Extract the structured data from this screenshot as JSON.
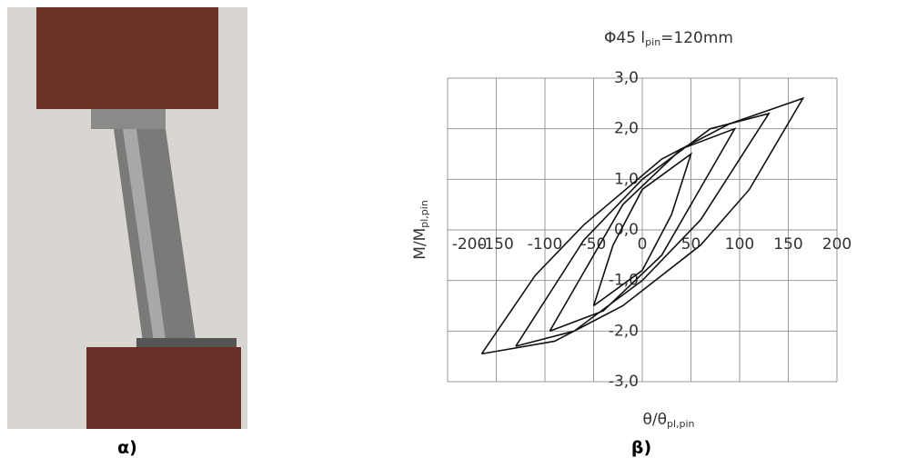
{
  "labels": [
    "α)",
    "β)"
  ],
  "chart_data": {
    "type": "line",
    "title_parts": [
      "Φ45 l",
      "pin",
      "=120mm"
    ],
    "x_label_parts": [
      "θ/θ",
      "pl,pin"
    ],
    "y_label_parts": [
      "M/M",
      "pl,pin"
    ],
    "xlim": [
      -200,
      200
    ],
    "ylim": [
      -3,
      3
    ],
    "xticks": [
      -200,
      -150,
      -100,
      -50,
      0,
      50,
      100,
      150,
      200
    ],
    "yticks": [
      {
        "value": -3,
        "label": "-3,0"
      },
      {
        "value": -2,
        "label": "-2,0"
      },
      {
        "value": -1,
        "label": "-1,0"
      },
      {
        "value": 0,
        "label": "0,0"
      },
      {
        "value": 1,
        "label": "1,0"
      },
      {
        "value": 2,
        "label": "2,0"
      },
      {
        "value": 3,
        "label": "3,0"
      }
    ],
    "grid": true,
    "series": [
      {
        "color": "#111111",
        "x": [
          -165,
          -90,
          -20,
          60,
          110,
          165,
          90,
          20,
          -60,
          -110,
          -165
        ],
        "values": [
          -2.45,
          -2.2,
          -1.5,
          -0.3,
          0.8,
          2.6,
          2.1,
          1.4,
          0.1,
          -0.9,
          -2.45
        ]
      },
      {
        "color": "#111111",
        "x": [
          -130,
          -70,
          0,
          60,
          130,
          70,
          0,
          -60,
          -130
        ],
        "values": [
          -2.3,
          -2.0,
          -1.0,
          0.2,
          2.3,
          2.0,
          1.0,
          -0.2,
          -2.3
        ]
      },
      {
        "color": "#111111",
        "x": [
          -95,
          -40,
          20,
          50,
          95,
          40,
          -20,
          -50,
          -95
        ],
        "values": [
          -2.0,
          -1.6,
          -0.5,
          0.5,
          2.0,
          1.6,
          0.5,
          -0.5,
          -2.0
        ]
      },
      {
        "color": "#111111",
        "x": [
          -50,
          0,
          30,
          50,
          0,
          -30,
          -50
        ],
        "values": [
          -1.5,
          -0.8,
          0.3,
          1.5,
          0.8,
          -0.3,
          -1.5
        ]
      }
    ]
  }
}
